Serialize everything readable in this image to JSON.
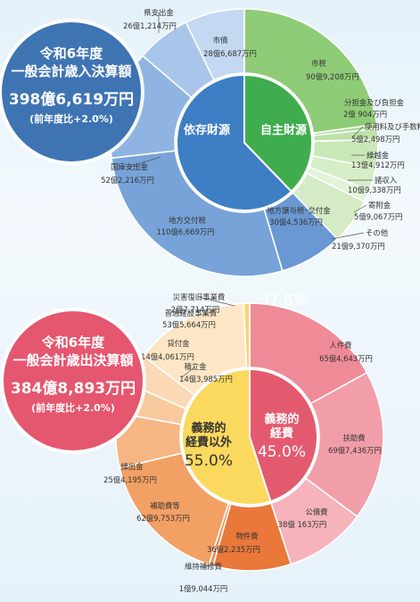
{
  "chart_data": [
    {
      "type": "pie",
      "badge": {
        "line1": "令和6年度",
        "line2": "一般会計歳入決算額",
        "amount": "398億6,619万円",
        "note": "(前年度比+2.0%)",
        "color": "#3f74b3"
      },
      "inner": [
        {
          "name": "自主財源",
          "pct_label": "37.8%",
          "value": 37.8,
          "color": "#3fad4e"
        },
        {
          "name": "依存財源",
          "pct_label": "62.2%",
          "value": 62.2,
          "color": "#3e7ec4"
        }
      ],
      "outer": [
        {
          "name": "市税",
          "amount": "90億9,208万円",
          "value": 909208,
          "color": "#8fcc77"
        },
        {
          "name": "分担金及び負担金",
          "amount": "2億 904万円",
          "value": 20904,
          "color": "#a9d892"
        },
        {
          "name": "使用料及び手数料",
          "amount": "5億2,498万円",
          "value": 52498,
          "color": "#bde2a9"
        },
        {
          "name": "繰越金",
          "amount": "13億4,912万円",
          "value": 134912,
          "color": "#c9e8b7"
        },
        {
          "name": "諸収入",
          "amount": "10億9,338万円",
          "value": 109338,
          "color": "#d6eec7"
        },
        {
          "name": "寄附金",
          "amount": "5億9,067万円",
          "value": 59067,
          "color": "#e3f3d8"
        },
        {
          "name": "その他",
          "amount": "21億9,370万円",
          "value": 219370,
          "color": "#d4ebc6"
        },
        {
          "name": "地方譲与税･交付金",
          "amount": "30億4,536万円",
          "value": 304536,
          "color": "#6a98d2"
        },
        {
          "name": "地方交付税",
          "amount": "110億6,669万円",
          "value": 1106669,
          "color": "#77a3d8"
        },
        {
          "name": "国庫支出金",
          "amount": "52億2,216万円",
          "value": 522216,
          "color": "#8fb4e1"
        },
        {
          "name": "県支出金",
          "amount": "26億1,214万円",
          "value": 261214,
          "color": "#a9c6ea"
        },
        {
          "name": "市債",
          "amount": "28億6,687万円",
          "value": 286687,
          "color": "#c4d8f1"
        }
      ]
    },
    {
      "type": "pie",
      "badge": {
        "line1": "令和6年度",
        "line2": "一般会計歳出決算額",
        "amount": "384億8,893万円",
        "note": "(前年度比+2.0%)",
        "color": "#e5566f"
      },
      "inner": [
        {
          "name": "義務的\n経費",
          "pct_label": "45.0%",
          "value": 45.0,
          "color": "#e35a6f"
        },
        {
          "name": "義務的\n経費以外",
          "pct_label": "55.0%",
          "value": 55.0,
          "color": "#fbd95e"
        }
      ],
      "outer": [
        {
          "name": "人件費",
          "amount": "65億4,643万円",
          "value": 654643,
          "color": "#ee8b97"
        },
        {
          "name": "扶助費",
          "amount": "69億7,436万円",
          "value": 697436,
          "color": "#f29ea9"
        },
        {
          "name": "公債費",
          "amount": "38億 163万円",
          "value": 380163,
          "color": "#f6b3bb"
        },
        {
          "name": "物件費",
          "amount": "36億2,235万円",
          "value": 362235,
          "color": "#e9783a"
        },
        {
          "name": "維持補修費",
          "amount": "1億9,044万円",
          "value": 19044,
          "color": "#ee8a4e"
        },
        {
          "name": "補助費等",
          "amount": "62億9,753万円",
          "value": 629753,
          "color": "#f2a064"
        },
        {
          "name": "繰出金",
          "amount": "25億4,195万円",
          "value": 254195,
          "color": "#f6b684"
        },
        {
          "name": "積立金",
          "amount": "14億3,985万円",
          "value": 143985,
          "color": "#f9c99e"
        },
        {
          "name": "貸付金",
          "amount": "14億4,061万円",
          "value": 144061,
          "color": "#fbd8b6"
        },
        {
          "name": "普通建設事業費",
          "amount": "53億5,664万円",
          "value": 535664,
          "color": "#fde6c6"
        },
        {
          "name": "災害復旧事業費",
          "amount": "2億7,714万円",
          "value": 27714,
          "color": "#fbd27a"
        }
      ]
    }
  ]
}
